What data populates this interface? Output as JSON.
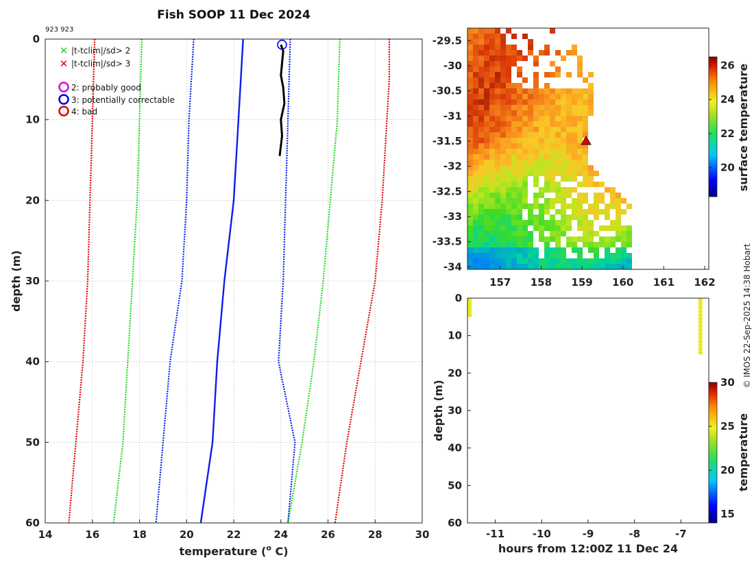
{
  "title": "Fish SOOP 11 Dec 2024",
  "subtitle": "923 923",
  "credit": "© IMOS 22-Sep-2025 14:38 Hobart",
  "chart_data": [
    {
      "type": "line",
      "name": "profile",
      "xlabel_pre": "temperature (",
      "xlabel_sup": "o",
      "xlabel_post": " C)",
      "ylabel": "depth (m)",
      "xlim": [
        14,
        30
      ],
      "ylim": [
        60,
        0
      ],
      "xticks": [
        "14",
        "16",
        "18",
        "20",
        "22",
        "24",
        "26",
        "28",
        "30"
      ],
      "yticks": [
        "0",
        "10",
        "20",
        "30",
        "40",
        "50",
        "60"
      ],
      "legend": {
        "crosses": [
          {
            "label": "|t-tclim|/sd> 2",
            "color": "#1fd81f"
          },
          {
            "label": "|t-tclim|/sd> 3",
            "color": "#e00000"
          }
        ],
        "circles": [
          {
            "label": "2: probably good",
            "color": "#e000e0"
          },
          {
            "label": "3: potentially correctable",
            "color": "#0000e0"
          },
          {
            "label": "4: bad",
            "color": "#e00000"
          }
        ]
      },
      "series": [
        {
          "name": "climatology mean",
          "color": "#0a1ee8",
          "style": "solid",
          "width": 2.4,
          "points": [
            [
              22.4,
              0
            ],
            [
              22.2,
              10
            ],
            [
              22.0,
              20
            ],
            [
              21.6,
              30
            ],
            [
              21.3,
              40
            ],
            [
              21.1,
              50
            ],
            [
              20.6,
              60
            ]
          ]
        },
        {
          "name": "mean - 1 sd",
          "color": "#0a1ee8",
          "style": "dotted",
          "width": 2.2,
          "points": [
            [
              20.3,
              0
            ],
            [
              20.1,
              10
            ],
            [
              20.0,
              20
            ],
            [
              19.8,
              30
            ],
            [
              19.3,
              40
            ],
            [
              19.0,
              50
            ],
            [
              18.7,
              60
            ]
          ]
        },
        {
          "name": "mean + 1 sd",
          "color": "#0a1ee8",
          "style": "dotted",
          "width": 2.2,
          "points": [
            [
              24.4,
              0
            ],
            [
              24.3,
              10
            ],
            [
              24.2,
              20
            ],
            [
              24.1,
              30
            ],
            [
              23.9,
              40
            ],
            [
              24.6,
              50
            ],
            [
              24.3,
              60
            ]
          ]
        },
        {
          "name": "mean - 2 sd",
          "color": "#1fd81f",
          "style": "dotted",
          "width": 2.2,
          "points": [
            [
              18.1,
              0
            ],
            [
              18.0,
              10
            ],
            [
              17.9,
              20
            ],
            [
              17.7,
              30
            ],
            [
              17.5,
              40
            ],
            [
              17.3,
              50
            ],
            [
              16.9,
              60
            ]
          ]
        },
        {
          "name": "mean + 2 sd",
          "color": "#1fd81f",
          "style": "dotted",
          "width": 2.2,
          "points": [
            [
              26.5,
              0
            ],
            [
              26.4,
              10
            ],
            [
              26.1,
              20
            ],
            [
              25.8,
              30
            ],
            [
              25.4,
              40
            ],
            [
              24.9,
              50
            ],
            [
              24.3,
              60
            ]
          ]
        },
        {
          "name": "mean - 3 sd",
          "color": "#e00000",
          "style": "dotted",
          "width": 2.2,
          "points": [
            [
              16.1,
              0
            ],
            [
              16.0,
              10
            ],
            [
              15.9,
              20
            ],
            [
              15.8,
              30
            ],
            [
              15.6,
              40
            ],
            [
              15.3,
              50
            ],
            [
              15.0,
              60
            ]
          ]
        },
        {
          "name": "mean + 3 sd",
          "color": "#e00000",
          "style": "dotted",
          "width": 2.2,
          "points": [
            [
              28.6,
              0
            ],
            [
              28.6,
              5
            ],
            [
              28.3,
              20
            ],
            [
              28.0,
              30
            ],
            [
              27.4,
              40
            ],
            [
              26.8,
              50
            ],
            [
              26.3,
              60
            ]
          ]
        },
        {
          "name": "observed profile",
          "color": "#000000",
          "style": "solid",
          "width": 3,
          "points": [
            [
              24.0,
              0.7
            ],
            [
              24.1,
              1.5
            ],
            [
              24.05,
              3
            ],
            [
              24.0,
              4.5
            ],
            [
              24.1,
              6
            ],
            [
              24.15,
              8
            ],
            [
              24.0,
              10
            ],
            [
              24.05,
              12
            ],
            [
              23.95,
              14.5
            ]
          ]
        }
      ],
      "flag_markers": [
        {
          "x": 24.05,
          "y": 0.7,
          "flag": "3: potentially correctable",
          "color": "#0000e0"
        }
      ]
    },
    {
      "type": "heatmap",
      "name": "surface temperature map",
      "xlim": [
        156.2,
        162.1
      ],
      "ylim": [
        -34.05,
        -29.25
      ],
      "xticks": [
        "157",
        "158",
        "159",
        "160",
        "161",
        "162"
      ],
      "yticks": [
        "-29.5",
        "-30",
        "-30.5",
        "-31",
        "-31.5",
        "-32",
        "-32.5",
        "-33",
        "-33.5",
        "-34"
      ],
      "ship_position": {
        "lon": 159.1,
        "lat": -31.5
      },
      "colorbar": {
        "label": "surface temperature",
        "range": [
          18.3,
          26.5
        ],
        "ticks": [
          "20",
          "22",
          "24",
          "26"
        ]
      }
    },
    {
      "type": "scatter",
      "name": "track history",
      "xlabel": "hours from 12:00Z 11 Dec 24",
      "ylabel": "depth (m)",
      "xlim": [
        -11.6,
        -6.4
      ],
      "ylim": [
        60,
        0
      ],
      "xticks": [
        "-11",
        "-10",
        "-9",
        "-8",
        "-7"
      ],
      "yticks": [
        "0",
        "10",
        "20",
        "30",
        "40",
        "50",
        "60"
      ],
      "series": [
        {
          "name": "early cast",
          "x": -11.55,
          "depths": [
            0.5,
            1.5,
            2.5,
            3.5,
            4.5
          ],
          "temperature": 24
        },
        {
          "name": "latest cast",
          "x": -6.58,
          "depths": [
            0.5,
            1.5,
            2.5,
            3.5,
            4.5,
            5.5,
            6.5,
            7.5,
            8.5,
            9.5,
            10.5,
            11.5,
            12.5,
            13.5,
            14.5
          ],
          "temperature": 24
        }
      ],
      "colorbar": {
        "label": "temperature",
        "range": [
          14,
          30
        ],
        "ticks": [
          "15",
          "20",
          "25",
          "30"
        ]
      }
    }
  ]
}
